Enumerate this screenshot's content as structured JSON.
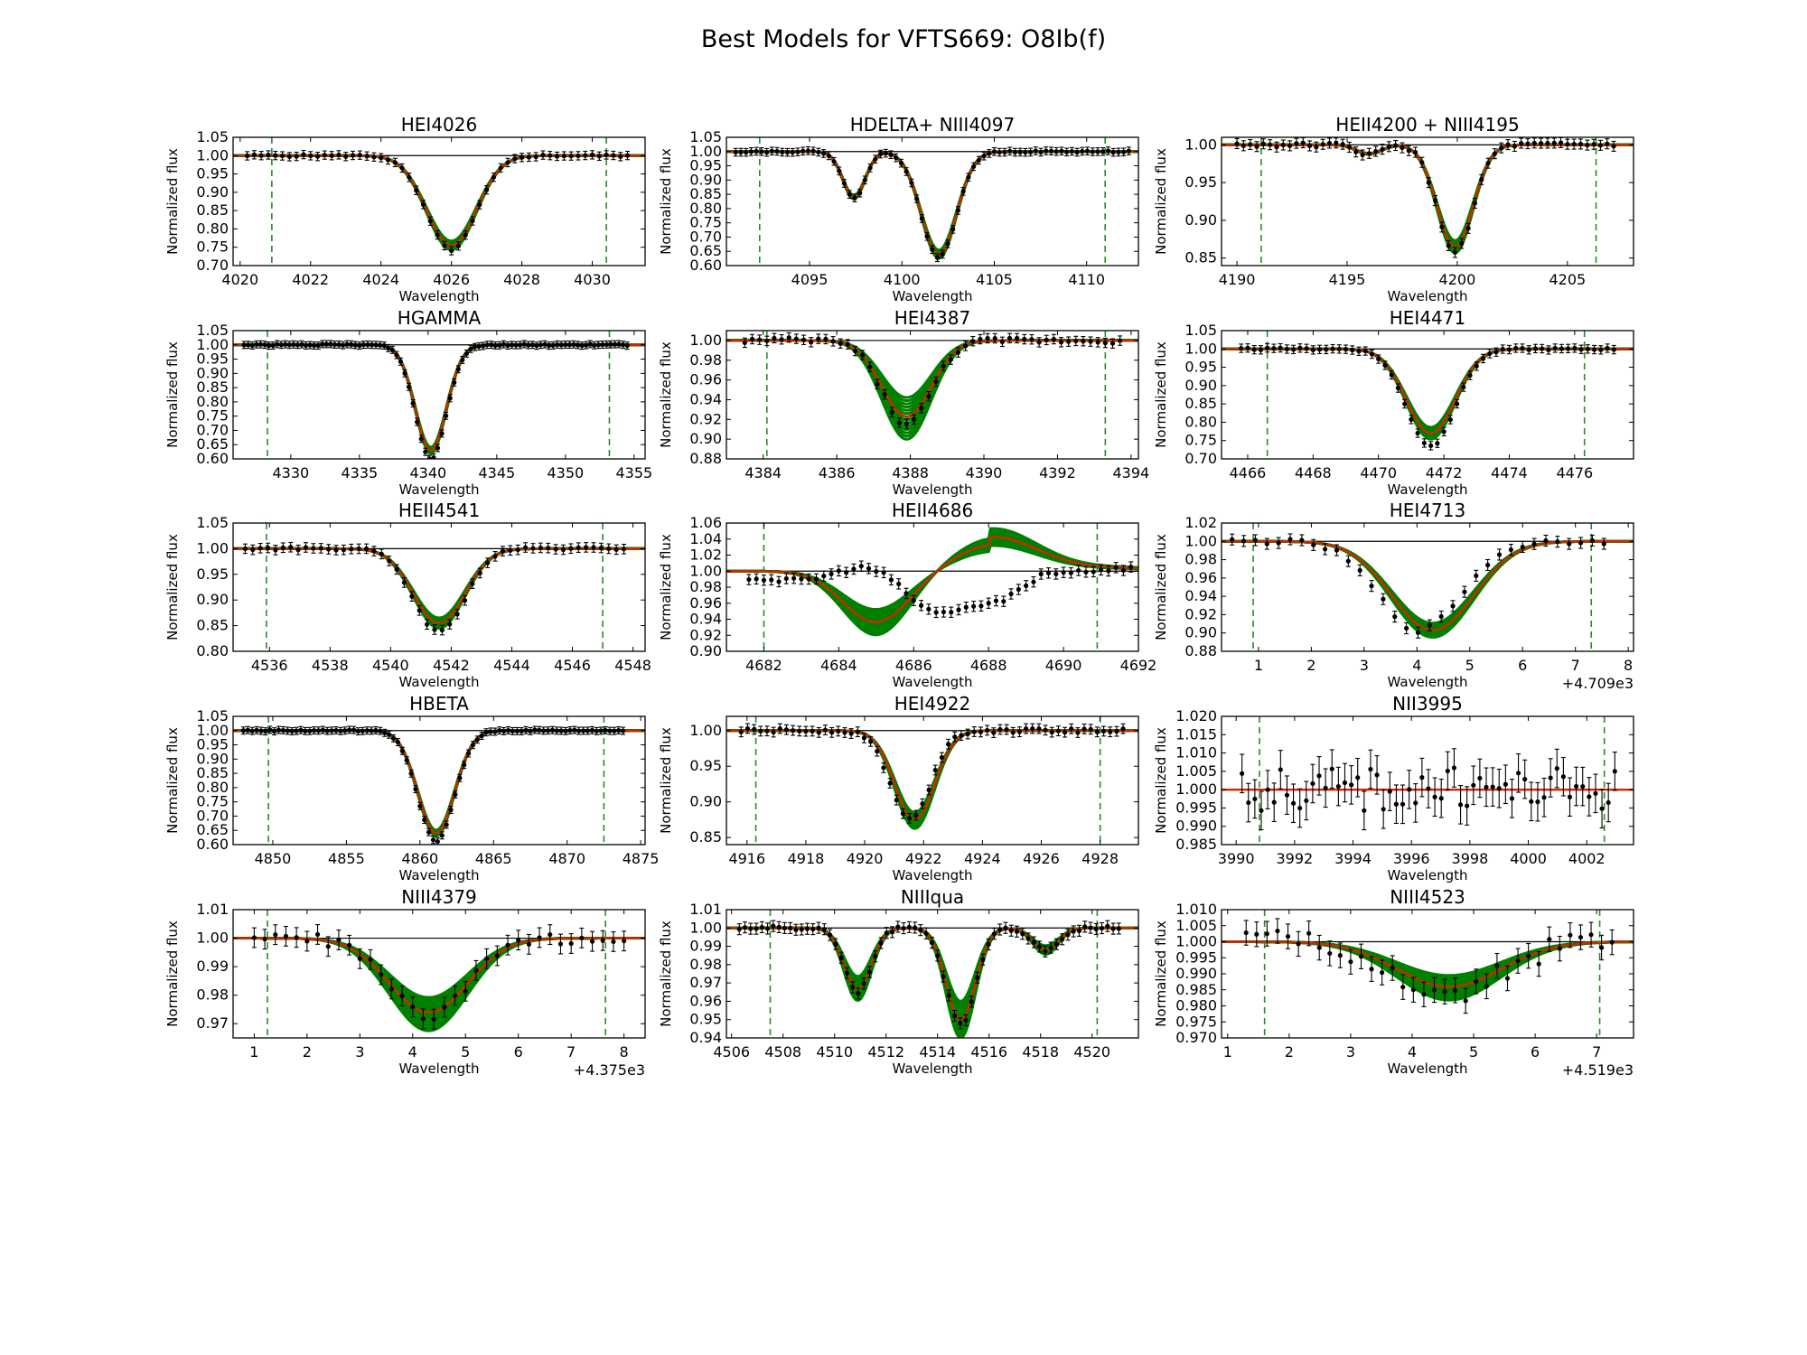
{
  "figure": {
    "title": "Best Models for VFTS669: O8Ib(f)"
  },
  "colors": {
    "observed": "#000000",
    "model_band": "#008000",
    "best_fit": "#d62400",
    "window": "#2a8a2a",
    "continuum": "#000000"
  },
  "chart_data": [
    {
      "type": "line",
      "title": "HEI4026",
      "xlabel": "Wavelength",
      "ylabel": "Normalized flux",
      "xlim": [
        4019.8,
        4031.5
      ],
      "ylim": [
        0.7,
        1.05
      ],
      "xticks": [
        "4020",
        "4022",
        "4024",
        "4026",
        "4028",
        "4030"
      ],
      "xtick_values": [
        4020,
        4022,
        4024,
        4026,
        4028,
        4030
      ],
      "yticks": [
        "0.70",
        "0.75",
        "0.80",
        "0.85",
        "0.90",
        "0.95",
        "1.00",
        "1.05"
      ],
      "ytick_values": [
        0.7,
        0.75,
        0.8,
        0.85,
        0.9,
        0.95,
        1.0,
        1.05
      ],
      "x_offset_label": "",
      "windows": [
        4020.9,
        4030.4
      ],
      "lines": [
        {
          "c": 4026.0,
          "d": 0.245,
          "w": 1.0
        }
      ],
      "band": [
        0.95,
        1.05
      ],
      "obs_range": [
        4020.2,
        4031.0
      ],
      "obs_step": 0.2,
      "obs_scale": 1.05,
      "err": 0.004
    },
    {
      "type": "line",
      "title": "HDELTA+ NIII4097",
      "xlabel": "Wavelength",
      "ylabel": "Normalized flux",
      "xlim": [
        4090.5,
        4112.8
      ],
      "ylim": [
        0.6,
        1.05
      ],
      "xticks": [
        "4095",
        "4100",
        "4105",
        "4110"
      ],
      "xtick_values": [
        4095,
        4100,
        4105,
        4110
      ],
      "yticks": [
        "0.60",
        "0.65",
        "0.70",
        "0.75",
        "0.80",
        "0.85",
        "0.90",
        "0.95",
        "1.00",
        "1.05"
      ],
      "ytick_values": [
        0.6,
        0.65,
        0.7,
        0.75,
        0.8,
        0.85,
        0.9,
        0.95,
        1.0,
        1.05
      ],
      "x_offset_label": "",
      "windows": [
        4092.3,
        4111.0
      ],
      "lines": [
        {
          "c": 4102.0,
          "d": 0.36,
          "w": 1.35
        },
        {
          "c": 4097.4,
          "d": 0.16,
          "w": 0.85
        }
      ],
      "band": [
        0.96,
        1.04
      ],
      "obs_range": [
        4091.0,
        4112.5
      ],
      "obs_step": 0.28,
      "obs_scale": 1.03,
      "err": 0.004
    },
    {
      "type": "line",
      "title": "HEII4200 + NIII4195",
      "xlabel": "Wavelength",
      "ylabel": "Normalized flux",
      "xlim": [
        4189.3,
        4208.0
      ],
      "ylim": [
        0.84,
        1.01
      ],
      "xticks": [
        "4190",
        "4195",
        "4200",
        "4205"
      ],
      "xtick_values": [
        4190,
        4195,
        4200,
        4205
      ],
      "yticks": [
        "0.85",
        "0.90",
        "0.95",
        "1.00"
      ],
      "ytick_values": [
        0.85,
        0.9,
        0.95,
        1.0
      ],
      "x_offset_label": "",
      "windows": [
        4191.1,
        4206.3
      ],
      "lines": [
        {
          "c": 4199.9,
          "d": 0.135,
          "w": 1.15
        },
        {
          "c": 4196.0,
          "d": 0.012,
          "w": 0.8
        }
      ],
      "band": [
        0.94,
        1.06
      ],
      "obs_range": [
        4190.0,
        4207.2
      ],
      "obs_step": 0.3,
      "obs_scale": 1.05,
      "err": 0.003
    },
    {
      "type": "line",
      "title": "HGAMMA",
      "xlabel": "Wavelength",
      "ylabel": "Normalized flux",
      "xlim": [
        4325.8,
        4355.8
      ],
      "ylim": [
        0.6,
        1.05
      ],
      "xticks": [
        "4330",
        "4335",
        "4340",
        "4345",
        "4350",
        "4355"
      ],
      "xtick_values": [
        4330,
        4335,
        4340,
        4345,
        4350,
        4355
      ],
      "yticks": [
        "0.60",
        "0.65",
        "0.70",
        "0.75",
        "0.80",
        "0.85",
        "0.90",
        "0.95",
        "1.00",
        "1.05"
      ],
      "ytick_values": [
        0.6,
        0.65,
        0.7,
        0.75,
        0.8,
        0.85,
        0.9,
        0.95,
        1.0,
        1.05
      ],
      "x_offset_label": "",
      "windows": [
        4328.3,
        4353.2
      ],
      "lines": [
        {
          "c": 4340.2,
          "d": 0.37,
          "w": 1.6
        }
      ],
      "band": [
        0.97,
        1.03
      ],
      "obs_range": [
        4326.6,
        4354.5
      ],
      "obs_step": 0.3,
      "obs_scale": 1.08,
      "err": 0.003
    },
    {
      "type": "line",
      "title": "HEI4387",
      "xlabel": "Wavelength",
      "ylabel": "Normalized flux",
      "xlim": [
        4383.0,
        4394.2
      ],
      "ylim": [
        0.88,
        1.01
      ],
      "xticks": [
        "4384",
        "4386",
        "4388",
        "4390",
        "4392",
        "4394"
      ],
      "xtick_values": [
        4384,
        4386,
        4388,
        4390,
        4392,
        4394
      ],
      "yticks": [
        "0.88",
        "0.90",
        "0.92",
        "0.94",
        "0.96",
        "0.98",
        "1.00"
      ],
      "ytick_values": [
        0.88,
        0.9,
        0.92,
        0.94,
        0.96,
        0.98,
        1.0
      ],
      "x_offset_label": "",
      "windows": [
        4384.1,
        4393.3
      ],
      "lines": [
        {
          "c": 4387.9,
          "d": 0.077,
          "w": 0.95
        }
      ],
      "band": [
        0.75,
        1.3
      ],
      "obs_range": [
        4383.5,
        4393.8
      ],
      "obs_step": 0.2,
      "obs_scale": 1.1,
      "err": 0.002
    },
    {
      "type": "line",
      "title": "HEI4471",
      "xlabel": "Wavelength",
      "ylabel": "Normalized flux",
      "xlim": [
        4465.2,
        4477.8
      ],
      "ylim": [
        0.7,
        1.05
      ],
      "xticks": [
        "4466",
        "4468",
        "4470",
        "4472",
        "4474",
        "4476"
      ],
      "xtick_values": [
        4466,
        4468,
        4470,
        4472,
        4474,
        4476
      ],
      "yticks": [
        "0.70",
        "0.75",
        "0.80",
        "0.85",
        "0.90",
        "0.95",
        "1.00",
        "1.05"
      ],
      "ytick_values": [
        0.7,
        0.75,
        0.8,
        0.85,
        0.9,
        0.95,
        1.0,
        1.05
      ],
      "x_offset_label": "",
      "windows": [
        4466.6,
        4476.3
      ],
      "lines": [
        {
          "c": 4471.6,
          "d": 0.23,
          "w": 1.05
        }
      ],
      "band": [
        0.93,
        1.07
      ],
      "obs_range": [
        4465.8,
        4477.2
      ],
      "obs_step": 0.2,
      "obs_scale": 1.15,
      "err": 0.004
    },
    {
      "type": "line",
      "title": "HEII4541",
      "xlabel": "Wavelength",
      "ylabel": "Normalized flux",
      "xlim": [
        4534.8,
        4548.4
      ],
      "ylim": [
        0.8,
        1.05
      ],
      "xticks": [
        "4536",
        "4538",
        "4540",
        "4542",
        "4544",
        "4546",
        "4548"
      ],
      "xtick_values": [
        4536,
        4538,
        4540,
        4542,
        4544,
        4546,
        4548
      ],
      "yticks": [
        "0.80",
        "0.85",
        "0.90",
        "0.95",
        "1.00",
        "1.05"
      ],
      "ytick_values": [
        0.8,
        0.85,
        0.9,
        0.95,
        1.0,
        1.05
      ],
      "x_offset_label": "",
      "windows": [
        4535.9,
        4547.0
      ],
      "lines": [
        {
          "c": 4541.6,
          "d": 0.145,
          "w": 1.2
        }
      ],
      "band": [
        0.93,
        1.07
      ],
      "obs_range": [
        4535.2,
        4547.8
      ],
      "obs_step": 0.25,
      "obs_scale": 1.12,
      "err": 0.004
    },
    {
      "type": "line",
      "title": "HEII4686",
      "xlabel": "Wavelength",
      "ylabel": "Normalized flux",
      "xlim": [
        4681.0,
        4692.0
      ],
      "ylim": [
        0.9,
        1.06
      ],
      "xticks": [
        "4682",
        "4684",
        "4686",
        "4688",
        "4690",
        "4692"
      ],
      "xtick_values": [
        4682,
        4684,
        4686,
        4688,
        4690,
        4692
      ],
      "yticks": [
        "0.90",
        "0.92",
        "0.94",
        "0.96",
        "0.98",
        "1.00",
        "1.02",
        "1.04",
        "1.06"
      ],
      "ytick_values": [
        0.9,
        0.92,
        0.94,
        0.96,
        0.98,
        1.0,
        1.02,
        1.04,
        1.06
      ],
      "x_offset_label": "",
      "windows": [
        4682.0,
        4690.9
      ],
      "pcygni": true,
      "band": [
        0.75,
        1.25
      ],
      "obs_range": [
        4681.6,
        4691.8
      ],
      "obs_step": 0.2,
      "err": 0.003
    },
    {
      "type": "line",
      "title": "HEI4713",
      "xlabel": "Wavelength",
      "ylabel": "Normalized flux",
      "xlim": [
        0.3,
        8.1
      ],
      "ylim": [
        0.88,
        1.02
      ],
      "xticks": [
        "1",
        "2",
        "3",
        "4",
        "5",
        "6",
        "7",
        "8"
      ],
      "xtick_values": [
        1,
        2,
        3,
        4,
        5,
        6,
        7,
        8
      ],
      "yticks": [
        "0.88",
        "0.90",
        "0.92",
        "0.94",
        "0.96",
        "0.98",
        "1.00",
        "1.02"
      ],
      "ytick_values": [
        0.88,
        0.9,
        0.92,
        0.94,
        0.96,
        0.98,
        1.0,
        1.02
      ],
      "x_offset_label": "+4.709e3",
      "windows": [
        0.9,
        7.3
      ],
      "lines": [
        {
          "c": 4.3,
          "d": 0.097,
          "w": 1.1
        }
      ],
      "band": [
        0.92,
        1.08
      ],
      "obs_range": [
        0.5,
        7.7
      ],
      "obs_step": 0.22,
      "obs_scale": 1.0,
      "obs_shift": -0.25,
      "err": 0.003
    },
    {
      "type": "line",
      "title": "HBETA",
      "xlabel": "Wavelength",
      "ylabel": "Normalized flux",
      "xlim": [
        4847.3,
        4875.3
      ],
      "ylim": [
        0.6,
        1.05
      ],
      "xticks": [
        "4850",
        "4855",
        "4860",
        "4865",
        "4870",
        "4875"
      ],
      "xtick_values": [
        4850,
        4855,
        4860,
        4865,
        4870,
        4875
      ],
      "yticks": [
        "0.60",
        "0.65",
        "0.70",
        "0.75",
        "0.80",
        "0.85",
        "0.90",
        "0.95",
        "1.00",
        "1.05"
      ],
      "ytick_values": [
        0.6,
        0.65,
        0.7,
        0.75,
        0.8,
        0.85,
        0.9,
        0.95,
        1.0,
        1.05
      ],
      "x_offset_label": "",
      "windows": [
        4849.7,
        4872.5
      ],
      "lines": [
        {
          "c": 4861.1,
          "d": 0.36,
          "w": 1.75
        }
      ],
      "band": [
        0.97,
        1.03
      ],
      "obs_range": [
        4848.0,
        4874.0
      ],
      "obs_step": 0.3,
      "obs_scale": 1.08,
      "err": 0.003
    },
    {
      "type": "line",
      "title": "HEI4922",
      "xlabel": "Wavelength",
      "ylabel": "Normalized flux",
      "xlim": [
        4915.3,
        4929.3
      ],
      "ylim": [
        0.84,
        1.02
      ],
      "xticks": [
        "4916",
        "4918",
        "4920",
        "4922",
        "4924",
        "4926",
        "4928"
      ],
      "xtick_values": [
        4916,
        4918,
        4920,
        4922,
        4924,
        4926,
        4928
      ],
      "yticks": [
        "0.85",
        "0.90",
        "0.95",
        "1.00"
      ],
      "ytick_values": [
        0.85,
        0.9,
        0.95,
        1.0
      ],
      "x_offset_label": "",
      "windows": [
        4916.3,
        4928.0
      ],
      "lines": [
        {
          "c": 4921.7,
          "d": 0.125,
          "w": 0.95
        }
      ],
      "band": [
        0.92,
        1.1
      ],
      "obs_range": [
        4915.8,
        4928.8
      ],
      "obs_step": 0.22,
      "obs_scale": 1.0,
      "obs_shift": -0.15,
      "err": 0.003
    },
    {
      "type": "line",
      "title": "NII3995",
      "xlabel": "Wavelength",
      "ylabel": "Normalized flux",
      "xlim": [
        3989.5,
        4003.6
      ],
      "ylim": [
        0.985,
        1.02
      ],
      "xticks": [
        "3990",
        "3992",
        "3994",
        "3996",
        "3998",
        "4000",
        "4002"
      ],
      "xtick_values": [
        3990,
        3992,
        3994,
        3996,
        3998,
        4000,
        4002
      ],
      "yticks": [
        "0.985",
        "0.990",
        "0.995",
        "1.000",
        "1.005",
        "1.010",
        "1.015",
        "1.020"
      ],
      "ytick_values": [
        0.985,
        0.99,
        0.995,
        1.0,
        1.005,
        1.01,
        1.015,
        1.02
      ],
      "x_offset_label": "",
      "windows": [
        3990.8,
        4002.6
      ],
      "lines": [],
      "band": [
        1.0,
        1.0
      ],
      "obs_range": [
        3990.2,
        4003.0
      ],
      "obs_step": 0.22,
      "obs_scale": 1.0,
      "err": 0.0045,
      "noise": 0.006
    },
    {
      "type": "line",
      "title": "NIII4379",
      "xlabel": "Wavelength",
      "ylabel": "Normalized flux",
      "xlim": [
        0.6,
        8.4
      ],
      "ylim": [
        0.965,
        1.01
      ],
      "xticks": [
        "1",
        "2",
        "3",
        "4",
        "5",
        "6",
        "7",
        "8"
      ],
      "xtick_values": [
        1,
        2,
        3,
        4,
        5,
        6,
        7,
        8
      ],
      "yticks": [
        "0.97",
        "0.98",
        "0.99",
        "1.00",
        "1.01"
      ],
      "ytick_values": [
        0.97,
        0.98,
        0.99,
        1.0,
        1.01
      ],
      "x_offset_label": "+4.375e3",
      "windows": [
        1.25,
        7.65
      ],
      "lines": [
        {
          "c": 4.3,
          "d": 0.026,
          "w": 1.05
        }
      ],
      "band": [
        0.8,
        1.25
      ],
      "obs_range": [
        1.0,
        8.0
      ],
      "obs_step": 0.2,
      "obs_scale": 1.05,
      "err": 0.0025,
      "noise": 0.002
    },
    {
      "type": "line",
      "title": "NIIIqua",
      "xlabel": "Wavelength",
      "ylabel": "Normalized flux",
      "xlim": [
        4505.8,
        4521.8
      ],
      "ylim": [
        0.94,
        1.01
      ],
      "xticks": [
        "4506",
        "4508",
        "4510",
        "4512",
        "4514",
        "4516",
        "4518",
        "4520"
      ],
      "xtick_values": [
        4506,
        4508,
        4510,
        4512,
        4514,
        4516,
        4518,
        4520
      ],
      "yticks": [
        "0.94",
        "0.95",
        "0.96",
        "0.97",
        "0.98",
        "0.99",
        "1.00",
        "1.01"
      ],
      "ytick_values": [
        0.94,
        0.95,
        0.96,
        0.97,
        0.98,
        0.99,
        1.0,
        1.01
      ],
      "x_offset_label": "",
      "windows": [
        4507.5,
        4520.2
      ],
      "lines": [
        {
          "c": 4510.9,
          "d": 0.033,
          "w": 0.75
        },
        {
          "c": 4514.9,
          "d": 0.05,
          "w": 0.8
        },
        {
          "c": 4518.2,
          "d": 0.012,
          "w": 0.7
        }
      ],
      "band": [
        0.8,
        1.2
      ],
      "obs_range": [
        4506.3,
        4521.2
      ],
      "obs_step": 0.22,
      "obs_scale": 1.05,
      "err": 0.0015,
      "noise": 0.0012
    },
    {
      "type": "line",
      "title": "NIII4523",
      "xlabel": "Wavelength",
      "ylabel": "Normalized flux",
      "xlim": [
        0.9,
        7.6
      ],
      "ylim": [
        0.97,
        1.01
      ],
      "xticks": [
        "1",
        "2",
        "3",
        "4",
        "5",
        "6",
        "7"
      ],
      "xtick_values": [
        1,
        2,
        3,
        4,
        5,
        6,
        7
      ],
      "yticks": [
        "0.970",
        "0.975",
        "0.980",
        "0.985",
        "0.990",
        "0.995",
        "1.000",
        "1.005",
        "1.010"
      ],
      "ytick_values": [
        0.97,
        0.975,
        0.98,
        0.985,
        0.99,
        0.995,
        1.0,
        1.005,
        1.01
      ],
      "x_offset_label": "+4.519e3",
      "windows": [
        1.6,
        7.05
      ],
      "lines": [
        {
          "c": 4.6,
          "d": 0.014,
          "w": 1.2
        }
      ],
      "band": [
        0.75,
        1.3
      ],
      "obs_range": [
        1.3,
        7.3
      ],
      "obs_step": 0.17,
      "obs_scale": 1.2,
      "err": 0.003,
      "noise": 0.0035
    }
  ]
}
